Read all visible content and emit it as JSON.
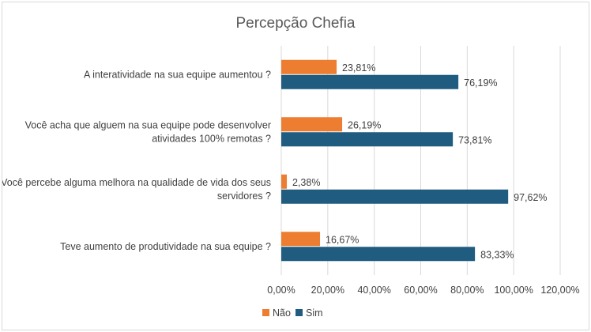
{
  "chart_data": {
    "type": "bar",
    "orientation": "horizontal",
    "title": "Percepção Chefia",
    "categories": [
      [
        "A interatividade na sua equipe aumentou ?"
      ],
      [
        "Você acha que alguem na sua equipe pode desenvolver",
        "atividades 100% remotas ?"
      ],
      [
        "Você percebe alguma melhora na qualidade de vida dos seus",
        "servidores ?"
      ],
      [
        "Teve aumento de produtividade na sua equipe ?"
      ]
    ],
    "series": [
      {
        "name": "Não",
        "color": "#ED7D31",
        "values": [
          23.81,
          26.19,
          2.38,
          16.67
        ],
        "labels": [
          "23,81%",
          "26,19%",
          "2,38%",
          "16,67%"
        ]
      },
      {
        "name": "Sim",
        "color": "#1F5C80",
        "values": [
          76.19,
          73.81,
          97.62,
          83.33
        ],
        "labels": [
          "76,19%",
          "73,81%",
          "97,62%",
          "83,33%"
        ]
      }
    ],
    "xlim": [
      0,
      120
    ],
    "xticks": [
      "0,00%",
      "20,00%",
      "40,00%",
      "60,00%",
      "80,00%",
      "100,00%",
      "120,00%"
    ],
    "grid": true,
    "legend_position": "bottom"
  }
}
